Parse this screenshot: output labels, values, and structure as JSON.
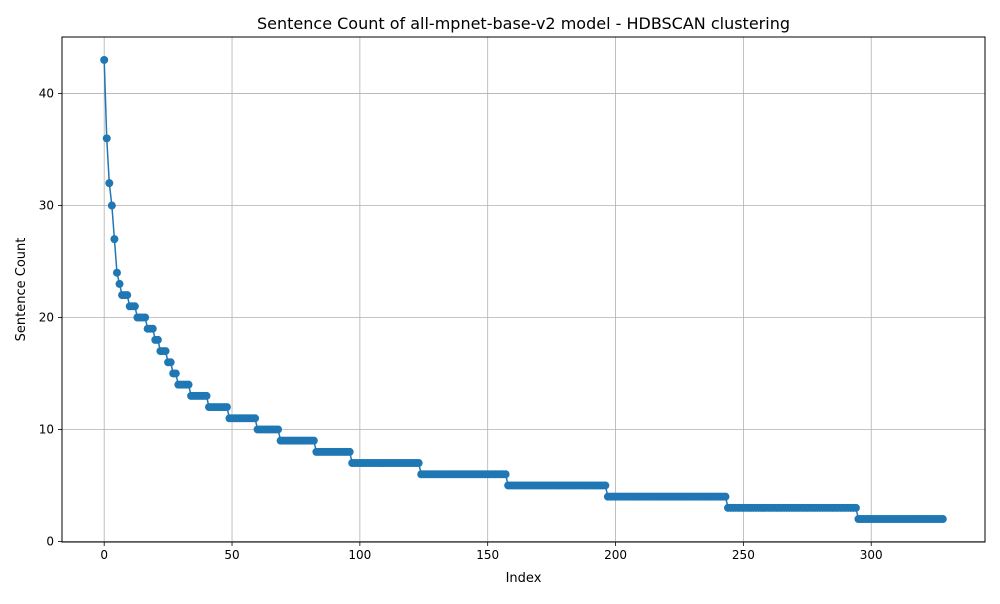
{
  "chart_data": {
    "type": "line",
    "title": "Sentence Count of all-mpnet-base-v2 model - HDBSCAN clustering",
    "xlabel": "Index",
    "ylabel": "Sentence Count",
    "xlim": [
      -16.5,
      344.5
    ],
    "ylim": [
      -0.05,
      45.05
    ],
    "x_ticks": [
      0,
      50,
      100,
      150,
      200,
      250,
      300
    ],
    "y_ticks": [
      0,
      10,
      20,
      30,
      40
    ],
    "grid": true,
    "legend": "none",
    "marker": "circle",
    "color": "#1f77b4",
    "head_values": [
      43,
      36,
      32,
      30,
      27,
      24,
      23
    ],
    "plateaus": [
      {
        "value": 22,
        "count": 3
      },
      {
        "value": 21,
        "count": 3
      },
      {
        "value": 20,
        "count": 4
      },
      {
        "value": 19,
        "count": 3
      },
      {
        "value": 18,
        "count": 2
      },
      {
        "value": 17,
        "count": 3
      },
      {
        "value": 16,
        "count": 2
      },
      {
        "value": 15,
        "count": 2
      },
      {
        "value": 14,
        "count": 5
      },
      {
        "value": 13,
        "count": 7
      },
      {
        "value": 12,
        "count": 8
      },
      {
        "value": 11,
        "count": 11
      },
      {
        "value": 10,
        "count": 9
      },
      {
        "value": 9,
        "count": 14
      },
      {
        "value": 8,
        "count": 14
      },
      {
        "value": 7,
        "count": 27
      },
      {
        "value": 6,
        "count": 34
      },
      {
        "value": 5,
        "count": 39
      },
      {
        "value": 4,
        "count": 47
      },
      {
        "value": 3,
        "count": 51
      },
      {
        "value": 2,
        "count": 34
      }
    ]
  }
}
